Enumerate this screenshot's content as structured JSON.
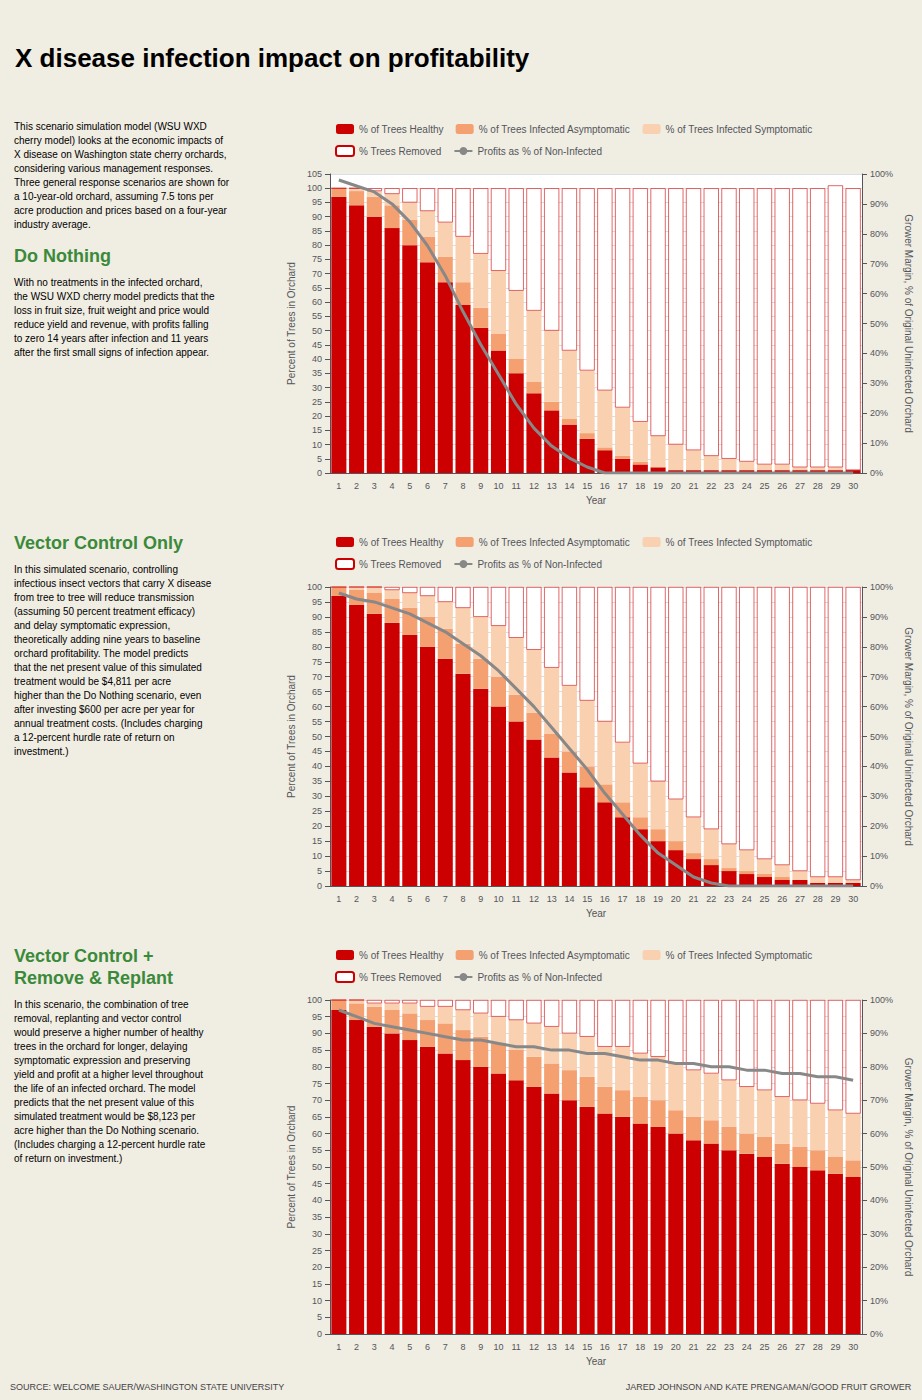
{
  "title": "X disease infection impact on profitability",
  "annotations": [
    "SOURCE: WELCOME SAUER/WASHINGTON STATE UNIVERSITY",
    "JARED JOHNSON AND KATE PRENGAMAN/GOOD FRUIT GROWER"
  ],
  "chart_data": [
    {
      "type": "bar",
      "title": "Do Nothing",
      "subtitle": "With no treatments in the infected orchard,\nthe WSU WXD cherry model predicts that the\nloss in fruit size, fruit weight and price would\nreduce yield and revenue, with profits falling\nto zero 14 years after infection and 11 years\nafter the first small signs of infection appear.",
      "annotations": [
        "This scenario simulation model (WSU WXD\ncherry model) looks at the economic impacts of\nX disease on Washington state cherry orchards,\nconsidering various management responses.\nThree general response scenarios are shown for\na 10-year-old orchard, assuming 7.5 tons per\nacre production and prices based on a four-year\nindustry average."
      ],
      "xlabel": "Year",
      "ylabel": "Percent of Trees in Orchard",
      "y2label": "Grower Margin, % of Original Uninfected Orchard",
      "categories": [
        1,
        2,
        3,
        4,
        5,
        6,
        7,
        8,
        9,
        10,
        11,
        12,
        13,
        14,
        15,
        16,
        17,
        18,
        19,
        20,
        21,
        22,
        23,
        24,
        25,
        26,
        27,
        28,
        29,
        30
      ],
      "ylim": [
        0,
        105
      ],
      "yticks": [
        0,
        5,
        10,
        15,
        20,
        25,
        30,
        35,
        40,
        45,
        50,
        55,
        60,
        65,
        70,
        75,
        80,
        85,
        90,
        95,
        100,
        105
      ],
      "y2lim": [
        0,
        100
      ],
      "y2ticks": [
        {
          "value": 0,
          "label": "0%"
        },
        {
          "value": 10,
          "label": "10%"
        },
        {
          "value": 20,
          "label": "20%"
        },
        {
          "value": 30,
          "label": "30%"
        },
        {
          "value": 40,
          "label": "40%"
        },
        {
          "value": 50,
          "label": "50%"
        },
        {
          "value": 60,
          "label": "60%"
        },
        {
          "value": 70,
          "label": "70%"
        },
        {
          "value": 80,
          "label": "80%"
        },
        {
          "value": 90,
          "label": "90%"
        },
        {
          "value": 100,
          "label": "100%"
        }
      ],
      "stacked": true,
      "grid": true,
      "legend": "top",
      "series": [
        {
          "name": "% of Trees Healthy",
          "type": "bar",
          "color": "#cc0000",
          "values": [
            97,
            94,
            90,
            86,
            80,
            74,
            67,
            59,
            51,
            43,
            35,
            28,
            22,
            17,
            12,
            8,
            5,
            3,
            2,
            1,
            1,
            1,
            1,
            1,
            1,
            1,
            1,
            1,
            1,
            1
          ]
        },
        {
          "name": "% of Trees Infected Asymptomatic",
          "type": "bar",
          "color": "#f4a070",
          "values": [
            3,
            5,
            7,
            8,
            9,
            9,
            9,
            8,
            7,
            6,
            5,
            4,
            3,
            2,
            2,
            1,
            1,
            1,
            0,
            0,
            0,
            0,
            0,
            0,
            0,
            0,
            0,
            0,
            0,
            0
          ]
        },
        {
          "name": "% of Trees Infected Symptomatic",
          "type": "bar",
          "color": "#f9d0b0",
          "values": [
            0,
            1,
            2,
            4,
            6,
            9,
            12,
            16,
            19,
            22,
            24,
            25,
            25,
            24,
            22,
            20,
            17,
            14,
            11,
            9,
            7,
            5,
            4,
            3,
            2,
            2,
            1,
            1,
            1,
            0
          ]
        },
        {
          "name": "% Trees Removed",
          "type": "bar",
          "color": "#ffffff",
          "values": [
            0,
            0,
            1,
            2,
            5,
            8,
            12,
            17,
            23,
            29,
            36,
            43,
            50,
            57,
            64,
            71,
            77,
            82,
            87,
            90,
            92,
            94,
            95,
            96,
            97,
            97,
            98,
            98,
            99,
            99
          ]
        },
        {
          "name": "Profits as % of Non-Infected",
          "type": "line",
          "axis": "y2",
          "color": "#888888",
          "values": [
            98,
            96,
            94,
            90,
            84,
            76,
            66,
            54,
            43,
            33,
            23,
            15,
            9,
            5,
            2,
            0,
            0,
            0,
            0,
            0,
            0,
            0,
            0,
            0,
            0,
            0,
            0,
            0,
            0,
            0
          ]
        }
      ]
    },
    {
      "type": "bar",
      "title": "Vector Control Only",
      "subtitle": "In this simulated scenario, controlling\ninfectious insect vectors that carry X disease\nfrom tree to tree will reduce transmission\n(assuming 50 percent treatment efficacy)\nand delay symptomatic expression,\ntheoretically adding nine years to baseline\norchard profitability. The model predicts\nthat the net present value of this simulated\ntreatment would be $4,811 per acre\nhigher than the Do Nothing scenario, even\nafter investing $600 per acre per year for\nannual treatment costs. (Includes charging\na 12-percent hurdle rate of return on\ninvestment.)",
      "xlabel": "Year",
      "ylabel": "Percent of Trees in Orchard",
      "y2label": "Grower Margin, % of Original Uninfected Orchard",
      "categories": [
        1,
        2,
        3,
        4,
        5,
        6,
        7,
        8,
        9,
        10,
        11,
        12,
        13,
        14,
        15,
        16,
        17,
        18,
        19,
        20,
        21,
        22,
        23,
        24,
        25,
        26,
        27,
        28,
        29,
        30
      ],
      "ylim": [
        0,
        100
      ],
      "yticks": [
        0,
        5,
        10,
        15,
        20,
        25,
        30,
        35,
        40,
        45,
        50,
        55,
        60,
        65,
        70,
        75,
        80,
        85,
        90,
        95,
        100
      ],
      "y2lim": [
        0,
        100
      ],
      "y2ticks": [
        {
          "value": 0,
          "label": "0%"
        },
        {
          "value": 10,
          "label": "10%"
        },
        {
          "value": 20,
          "label": "20%"
        },
        {
          "value": 30,
          "label": "30%"
        },
        {
          "value": 40,
          "label": "40%"
        },
        {
          "value": 50,
          "label": "50%"
        },
        {
          "value": 60,
          "label": "60%"
        },
        {
          "value": 70,
          "label": "70%"
        },
        {
          "value": 80,
          "label": "80%"
        },
        {
          "value": 90,
          "label": "90%"
        },
        {
          "value": 100,
          "label": "100%"
        }
      ],
      "stacked": true,
      "grid": true,
      "legend": "top",
      "series": [
        {
          "name": "% of Trees Healthy",
          "type": "bar",
          "color": "#cc0000",
          "values": [
            97,
            94,
            91,
            88,
            84,
            80,
            76,
            71,
            66,
            60,
            55,
            49,
            43,
            38,
            33,
            28,
            23,
            19,
            15,
            12,
            9,
            7,
            5,
            4,
            3,
            2,
            2,
            1,
            1,
            1
          ]
        },
        {
          "name": "% of Trees Infected Asymptomatic",
          "type": "bar",
          "color": "#f4a070",
          "values": [
            3,
            5,
            7,
            8,
            9,
            10,
            10,
            10,
            10,
            10,
            9,
            9,
            8,
            7,
            7,
            6,
            5,
            4,
            4,
            3,
            2,
            2,
            1,
            1,
            1,
            1,
            0,
            0,
            0,
            0
          ]
        },
        {
          "name": "% of Trees Infected Symptomatic",
          "type": "bar",
          "color": "#f9d0b0",
          "values": [
            0,
            1,
            2,
            3,
            5,
            7,
            9,
            12,
            14,
            17,
            19,
            21,
            22,
            22,
            22,
            21,
            20,
            18,
            16,
            14,
            12,
            10,
            8,
            7,
            5,
            4,
            3,
            2,
            2,
            1
          ]
        },
        {
          "name": "% Trees Removed",
          "type": "bar",
          "color": "#ffffff",
          "values": [
            0,
            0,
            0,
            1,
            2,
            3,
            5,
            7,
            10,
            13,
            17,
            21,
            27,
            33,
            38,
            45,
            52,
            59,
            65,
            71,
            77,
            81,
            86,
            88,
            91,
            93,
            95,
            97,
            97,
            98
          ]
        },
        {
          "name": "Profits as % of Non-Infected",
          "type": "line",
          "axis": "y2",
          "color": "#888888",
          "values": [
            98,
            96,
            95,
            93,
            91,
            88,
            85,
            81,
            77,
            72,
            66,
            60,
            53,
            46,
            39,
            31,
            24,
            17,
            11,
            7,
            3,
            1,
            0,
            0,
            0,
            0,
            0,
            0,
            0,
            0
          ]
        }
      ]
    },
    {
      "type": "bar",
      "title": "Vector Control +\nRemove & Replant",
      "subtitle": "In this scenario, the combination of tree\nremoval, replanting and vector control\nwould preserve a higher number of healthy\ntrees in the orchard for longer, delaying\nsymptomatic expression and preserving\nyield and profit at a higher level throughout\nthe life of an infected orchard. The model\npredicts that the net present value of this\nsimulated treatment would be $8,123 per\nacre higher than the Do Nothing scenario.\n(Includes charging a 12-percent hurdle rate\nof return on investment.)",
      "xlabel": "Year",
      "ylabel": "Percent of Trees in Orchard",
      "y2label": "Grower Margin, % of Original Uninfected Orchard",
      "categories": [
        1,
        2,
        3,
        4,
        5,
        6,
        7,
        8,
        9,
        10,
        11,
        12,
        13,
        14,
        15,
        16,
        17,
        18,
        19,
        20,
        21,
        22,
        23,
        24,
        25,
        26,
        27,
        28,
        29,
        30
      ],
      "ylim": [
        0,
        100
      ],
      "yticks": [
        0,
        5,
        10,
        15,
        20,
        25,
        30,
        35,
        40,
        45,
        50,
        55,
        60,
        65,
        70,
        75,
        80,
        85,
        90,
        95,
        100
      ],
      "y2lim": [
        0,
        100
      ],
      "y2ticks": [
        {
          "value": 0,
          "label": "0%"
        },
        {
          "value": 10,
          "label": "10%"
        },
        {
          "value": 20,
          "label": "20%"
        },
        {
          "value": 30,
          "label": "30%"
        },
        {
          "value": 40,
          "label": "40%"
        },
        {
          "value": 50,
          "label": "50%"
        },
        {
          "value": 60,
          "label": "60%"
        },
        {
          "value": 70,
          "label": "70%"
        },
        {
          "value": 80,
          "label": "80%"
        },
        {
          "value": 90,
          "label": "90%"
        },
        {
          "value": 100,
          "label": "100%"
        }
      ],
      "stacked": true,
      "grid": true,
      "legend": "top",
      "series": [
        {
          "name": "% of Trees Healthy",
          "type": "bar",
          "color": "#cc0000",
          "values": [
            97,
            94,
            92,
            90,
            88,
            86,
            84,
            82,
            80,
            78,
            76,
            74,
            72,
            70,
            68,
            66,
            65,
            63,
            62,
            60,
            58,
            57,
            55,
            54,
            53,
            51,
            50,
            49,
            48,
            47
          ]
        },
        {
          "name": "% of Trees Infected Asymptomatic",
          "type": "bar",
          "color": "#f4a070",
          "values": [
            3,
            5,
            6,
            7,
            8,
            8,
            9,
            9,
            9,
            9,
            9,
            9,
            9,
            9,
            9,
            8,
            8,
            8,
            8,
            7,
            7,
            7,
            7,
            6,
            6,
            6,
            6,
            6,
            5,
            5
          ]
        },
        {
          "name": "% of Trees Infected Symptomatic",
          "type": "bar",
          "color": "#f9d0b0",
          "values": [
            0,
            1,
            1,
            2,
            3,
            4,
            5,
            6,
            7,
            8,
            9,
            10,
            11,
            11,
            12,
            12,
            13,
            13,
            13,
            14,
            14,
            14,
            14,
            14,
            14,
            14,
            14,
            14,
            14,
            14
          ]
        },
        {
          "name": "% Trees Removed",
          "type": "bar",
          "color": "#ffffff",
          "values": [
            0,
            0,
            1,
            1,
            1,
            2,
            2,
            3,
            4,
            5,
            6,
            7,
            8,
            10,
            11,
            14,
            14,
            16,
            17,
            19,
            21,
            22,
            24,
            26,
            27,
            29,
            30,
            31,
            33,
            34
          ]
        },
        {
          "name": "Profits as % of Non-Infected",
          "type": "line",
          "axis": "y2",
          "color": "#888888",
          "values": [
            97,
            95,
            93,
            92,
            91,
            90,
            89,
            88,
            88,
            87,
            86,
            86,
            85,
            85,
            84,
            84,
            83,
            82,
            82,
            81,
            81,
            80,
            80,
            79,
            79,
            78,
            78,
            77,
            77,
            76
          ]
        }
      ]
    }
  ]
}
